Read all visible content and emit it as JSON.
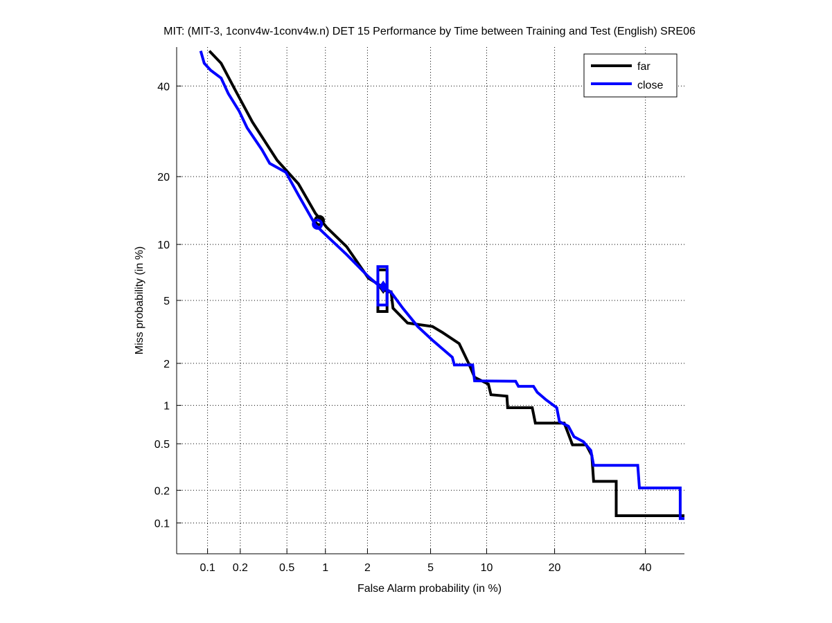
{
  "chart_data": {
    "type": "line",
    "scale": "normal-deviate (DET)",
    "title": "MIT: (MIT-3, 1conv4w-1conv4w.n) DET 15 Performance by Time between Training and Test (English) SRE06",
    "xlabel": "False Alarm probability (in %)",
    "ylabel": "Miss probability (in %)",
    "xlim": [
      0.05,
      50
    ],
    "ylim": [
      0.05,
      50
    ],
    "xticks": [
      0.1,
      0.2,
      0.5,
      1,
      2,
      5,
      10,
      20,
      40
    ],
    "xtick_labels": [
      "0.1",
      "0.2",
      "0.5",
      "1",
      "2",
      "5",
      "10",
      "20",
      "40"
    ],
    "yticks": [
      0.1,
      0.2,
      0.5,
      1,
      2,
      5,
      10,
      20,
      40
    ],
    "ytick_labels": [
      "0.1",
      "0.2",
      "0.5",
      "1",
      "2",
      "5",
      "10",
      "20",
      "40"
    ],
    "grid": true,
    "legend_position": "top-right",
    "series": [
      {
        "name": "far",
        "color": "#000000",
        "points": [
          [
            0.104,
            49
          ],
          [
            0.134,
            45.8
          ],
          [
            0.18,
            39
          ],
          [
            0.256,
            31.3
          ],
          [
            0.416,
            23.1
          ],
          [
            0.62,
            18.7
          ],
          [
            0.84,
            14.0
          ],
          [
            1.02,
            12.1
          ],
          [
            1.43,
            9.75
          ],
          [
            2.03,
            6.67
          ],
          [
            2.41,
            6.12
          ],
          [
            2.71,
            5.6
          ],
          [
            2.87,
            5.6
          ],
          [
            2.95,
            4.5
          ],
          [
            3.64,
            3.66
          ],
          [
            5.13,
            3.48
          ],
          [
            5.83,
            3.2
          ],
          [
            7.22,
            2.71
          ],
          [
            8.1,
            2.0
          ],
          [
            8.7,
            1.6
          ],
          [
            10.2,
            1.43
          ],
          [
            10.5,
            1.2
          ],
          [
            12.5,
            1.17
          ],
          [
            12.6,
            0.96
          ],
          [
            16.2,
            0.96
          ],
          [
            16.7,
            0.73
          ],
          [
            21.8,
            0.73
          ],
          [
            22.6,
            0.6
          ],
          [
            23.4,
            0.49
          ],
          [
            26.2,
            0.49
          ],
          [
            27.4,
            0.4
          ],
          [
            27.8,
            0.24
          ],
          [
            32.9,
            0.24
          ],
          [
            32.9,
            0.117
          ],
          [
            50,
            0.117
          ]
        ],
        "min_dcf_point": [
          0.9,
          13.0
        ],
        "eer_point": [
          2.55,
          5.9
        ],
        "confidence_box": {
          "fa": [
            2.35,
            2.7
          ],
          "miss": [
            4.3,
            7.4
          ]
        }
      },
      {
        "name": "close",
        "color": "#0000ff",
        "points": [
          [
            0.086,
            49
          ],
          [
            0.093,
            45.8
          ],
          [
            0.107,
            44
          ],
          [
            0.134,
            42
          ],
          [
            0.156,
            38.1
          ],
          [
            0.195,
            33.9
          ],
          [
            0.23,
            30
          ],
          [
            0.31,
            25.2
          ],
          [
            0.36,
            22.5
          ],
          [
            0.49,
            20.8
          ],
          [
            0.62,
            16.8
          ],
          [
            0.84,
            12.4
          ],
          [
            1.01,
            11.1
          ],
          [
            1.43,
            8.9
          ],
          [
            2.03,
            6.8
          ],
          [
            2.36,
            6.12
          ],
          [
            2.85,
            5.6
          ],
          [
            3.4,
            4.5
          ],
          [
            4.2,
            3.48
          ],
          [
            5.13,
            2.85
          ],
          [
            6.63,
            2.2
          ],
          [
            6.8,
            1.95
          ],
          [
            8.5,
            1.95
          ],
          [
            8.7,
            1.51
          ],
          [
            13.7,
            1.5
          ],
          [
            14.1,
            1.38
          ],
          [
            16.4,
            1.38
          ],
          [
            17.0,
            1.25
          ],
          [
            18.5,
            1.1
          ],
          [
            20.4,
            0.96
          ],
          [
            20.9,
            0.75
          ],
          [
            22.6,
            0.69
          ],
          [
            23.7,
            0.57
          ],
          [
            25.6,
            0.52
          ],
          [
            27.2,
            0.44
          ],
          [
            27.8,
            0.33
          ],
          [
            38.1,
            0.33
          ],
          [
            38.5,
            0.21
          ],
          [
            48.9,
            0.21
          ],
          [
            48.9,
            0.11
          ],
          [
            50,
            0.11
          ]
        ],
        "min_dcf_point": [
          0.87,
          12.5
        ],
        "eer_point": [
          2.55,
          6.0
        ],
        "confidence_box": {
          "fa": [
            2.35,
            2.7
          ],
          "miss": [
            4.7,
            7.7
          ]
        }
      }
    ]
  }
}
